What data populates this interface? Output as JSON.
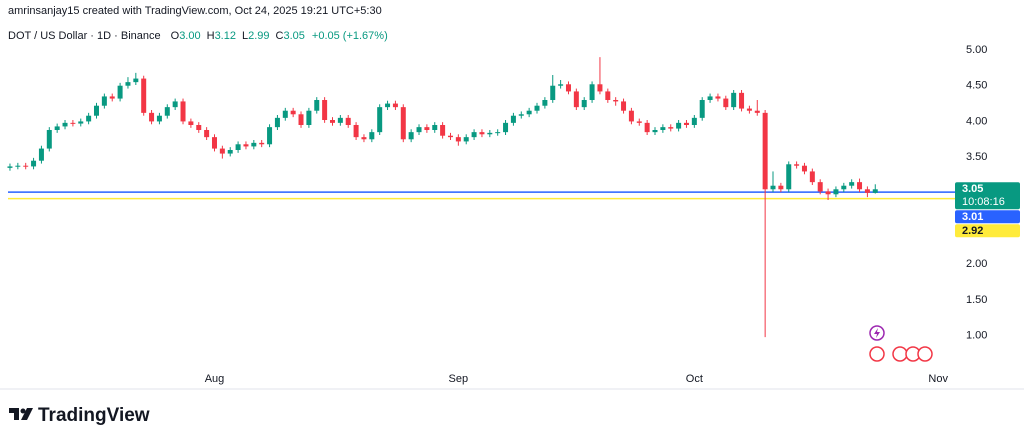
{
  "header": {
    "caption": "amrinsanjay15 created with TradingView.com, Oct 24, 2025 19:21 UTC+5:30"
  },
  "legend": {
    "symbol": "DOT / US Dollar · 1D · Binance",
    "items": [
      {
        "key": "O",
        "text": "3.00"
      },
      {
        "key": "H",
        "text": "3.12"
      },
      {
        "key": "L",
        "text": "2.99"
      },
      {
        "key": "C",
        "text": "3.05"
      }
    ],
    "change": "+0.05 (+1.67%)",
    "color": "#089981"
  },
  "chart_data": {
    "type": "candlestick",
    "up_color": "#089981",
    "down_color": "#f23645",
    "grid": false,
    "xlim": [
      -0.25,
      119.5
    ],
    "xticks": [
      {
        "value": 26,
        "label": "Aug"
      },
      {
        "value": 57,
        "label": "Sep"
      },
      {
        "value": 87,
        "label": "Oct"
      },
      {
        "value": 118,
        "label": "Nov"
      }
    ],
    "ylim": [
      0.52,
      5.35
    ],
    "yticks": [
      {
        "value": 1,
        "label": "1.00"
      },
      {
        "value": 1.5,
        "label": "1.50"
      },
      {
        "value": 2,
        "label": "2.00"
      },
      {
        "value": 3.5,
        "label": "3.50"
      },
      {
        "value": 4,
        "label": "4.00"
      },
      {
        "value": 4.5,
        "label": "4.50"
      },
      {
        "value": 5,
        "label": "5.00"
      }
    ],
    "open": [
      3.35,
      3.37,
      3.38,
      3.37,
      3.45,
      3.62,
      3.88,
      3.93,
      3.98,
      3.97,
      4.0,
      4.08,
      4.22,
      4.35,
      4.32,
      4.5,
      4.55,
      4.6,
      4.12,
      4.0,
      4.08,
      4.2,
      4.28,
      4.0,
      3.95,
      3.88,
      3.78,
      3.62,
      3.55,
      3.6,
      3.68,
      3.65,
      3.7,
      3.68,
      3.92,
      4.05,
      4.15,
      4.1,
      3.95,
      4.15,
      4.3,
      4.02,
      3.98,
      4.05,
      3.95,
      3.78,
      3.75,
      3.85,
      4.2,
      4.25,
      4.2,
      3.75,
      3.85,
      3.92,
      3.88,
      3.95,
      3.8,
      3.78,
      3.72,
      3.78,
      3.85,
      3.82,
      3.84,
      3.85,
      3.98,
      4.08,
      4.1,
      4.15,
      4.22,
      4.3,
      4.5,
      4.52,
      4.42,
      4.2,
      4.3,
      4.52,
      4.42,
      4.3,
      4.28,
      4.15,
      4.0,
      3.98,
      3.85,
      3.88,
      3.92,
      3.9,
      3.98,
      3.95,
      4.05,
      4.3,
      4.35,
      4.32,
      4.2,
      4.4,
      4.18,
      4.15,
      4.12,
      3.05,
      3.1,
      3.05,
      3.4,
      3.38,
      3.3,
      3.15,
      3.02,
      2.98,
      3.05,
      3.1,
      3.15,
      3.05,
      3.0
    ],
    "high": [
      3.41,
      3.42,
      3.42,
      3.49,
      3.66,
      3.92,
      3.97,
      4.02,
      4.02,
      4.04,
      4.12,
      4.26,
      4.39,
      4.39,
      4.54,
      4.62,
      4.68,
      4.64,
      4.16,
      4.12,
      4.24,
      4.32,
      4.32,
      4.04,
      3.99,
      3.92,
      3.82,
      3.66,
      3.64,
      3.72,
      3.72,
      3.74,
      3.74,
      3.96,
      4.09,
      4.19,
      4.19,
      4.14,
      4.19,
      4.34,
      4.34,
      4.06,
      4.09,
      4.09,
      3.99,
      3.82,
      3.89,
      4.24,
      4.29,
      4.29,
      4.24,
      3.89,
      3.96,
      3.96,
      3.99,
      3.99,
      3.84,
      3.82,
      3.82,
      3.89,
      3.89,
      3.88,
      3.89,
      4.02,
      4.12,
      4.14,
      4.19,
      4.26,
      4.34,
      4.65,
      4.58,
      4.56,
      4.46,
      4.34,
      4.56,
      4.9,
      4.46,
      4.34,
      4.32,
      4.19,
      4.04,
      4.02,
      3.92,
      3.96,
      3.96,
      4.02,
      4.02,
      4.09,
      4.34,
      4.39,
      4.39,
      4.36,
      4.44,
      4.44,
      4.22,
      4.3,
      4.16,
      3.3,
      3.14,
      3.44,
      3.44,
      3.42,
      3.34,
      3.19,
      3.06,
      3.09,
      3.14,
      3.19,
      3.2,
      3.09,
      3.12
    ],
    "low": [
      3.31,
      3.33,
      3.33,
      3.33,
      3.41,
      3.58,
      3.84,
      3.89,
      3.93,
      3.93,
      3.96,
      4.04,
      4.18,
      4.28,
      4.28,
      4.46,
      4.51,
      4.08,
      3.96,
      3.96,
      4.04,
      4.16,
      3.96,
      3.91,
      3.84,
      3.74,
      3.58,
      3.48,
      3.51,
      3.56,
      3.61,
      3.61,
      3.64,
      3.64,
      3.88,
      4.01,
      4.06,
      3.91,
      3.91,
      4.11,
      3.98,
      3.94,
      3.94,
      3.91,
      3.74,
      3.71,
      3.71,
      3.81,
      4.16,
      4.16,
      3.71,
      3.71,
      3.81,
      3.84,
      3.84,
      3.76,
      3.74,
      3.66,
      3.68,
      3.74,
      3.78,
      3.78,
      3.8,
      3.81,
      3.94,
      4.04,
      4.06,
      4.11,
      4.18,
      4.26,
      4.46,
      4.38,
      4.16,
      4.16,
      4.26,
      4.38,
      4.26,
      4.22,
      4.11,
      3.96,
      3.94,
      3.81,
      3.81,
      3.84,
      3.86,
      3.86,
      3.91,
      3.91,
      4.01,
      4.26,
      4.28,
      4.16,
      4.16,
      4.14,
      4.11,
      4.08,
      0.98,
      3.01,
      3.01,
      3.01,
      3.34,
      3.26,
      3.11,
      2.98,
      2.9,
      2.94,
      3.01,
      3.06,
      3.01,
      2.94,
      2.99
    ],
    "close": [
      3.37,
      3.38,
      3.37,
      3.45,
      3.62,
      3.88,
      3.93,
      3.98,
      3.97,
      4.0,
      4.08,
      4.22,
      4.35,
      4.32,
      4.5,
      4.55,
      4.6,
      4.12,
      4.0,
      4.08,
      4.2,
      4.28,
      4.0,
      3.95,
      3.88,
      3.78,
      3.62,
      3.55,
      3.6,
      3.68,
      3.65,
      3.7,
      3.68,
      3.92,
      4.05,
      4.15,
      4.1,
      3.95,
      4.15,
      4.3,
      4.02,
      3.98,
      4.05,
      3.95,
      3.78,
      3.75,
      3.85,
      4.2,
      4.25,
      4.2,
      3.75,
      3.85,
      3.92,
      3.88,
      3.95,
      3.8,
      3.78,
      3.72,
      3.78,
      3.85,
      3.82,
      3.84,
      3.85,
      3.98,
      4.08,
      4.1,
      4.15,
      4.22,
      4.3,
      4.5,
      4.52,
      4.42,
      4.2,
      4.3,
      4.52,
      4.42,
      4.3,
      4.28,
      4.15,
      4.0,
      3.98,
      3.85,
      3.88,
      3.92,
      3.9,
      3.98,
      3.95,
      4.05,
      4.3,
      4.35,
      4.32,
      4.2,
      4.4,
      4.18,
      4.15,
      4.12,
      3.05,
      3.1,
      3.05,
      3.4,
      3.38,
      3.3,
      3.15,
      3.02,
      2.98,
      3.05,
      3.1,
      3.15,
      3.05,
      3.0,
      3.05
    ],
    "hlines": [
      {
        "value": 3.01,
        "color": "#2962ff"
      },
      {
        "value": 2.92,
        "color": "#ffeb3b"
      }
    ],
    "price_labels": [
      {
        "value": 3.05,
        "color": "#089981",
        "text_color": "#ffffff",
        "sub": "10:08:16"
      },
      {
        "value": 3.01,
        "color": "#2962ff",
        "text_color": "#ffffff"
      },
      {
        "value": 2.92,
        "color": "#ffeb3b",
        "text_color": "#131722"
      }
    ]
  },
  "footer": {
    "brand": "TradingView"
  }
}
